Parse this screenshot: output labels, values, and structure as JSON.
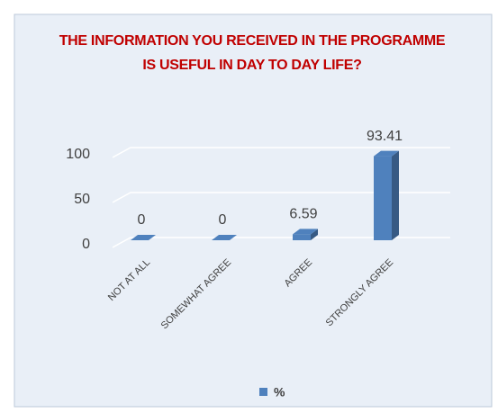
{
  "chart_data": {
    "type": "bar3d",
    "title": "THE INFORMATION YOU RECEIVED IN THE PROGRAMME IS USEFUL IN DAY TO DAY LIFE?",
    "categories": [
      "NOT AT ALL",
      "SOMEWHAT AGREE",
      "AGREE",
      "STRONGLY AGREE"
    ],
    "series": [
      {
        "name": "%",
        "color": "#4f81bd",
        "values": [
          0,
          0,
          6.59,
          93.41
        ]
      }
    ],
    "ylim": [
      0,
      100
    ],
    "yticks": [
      0,
      50,
      100
    ],
    "grid": true,
    "legend": "bottom"
  }
}
